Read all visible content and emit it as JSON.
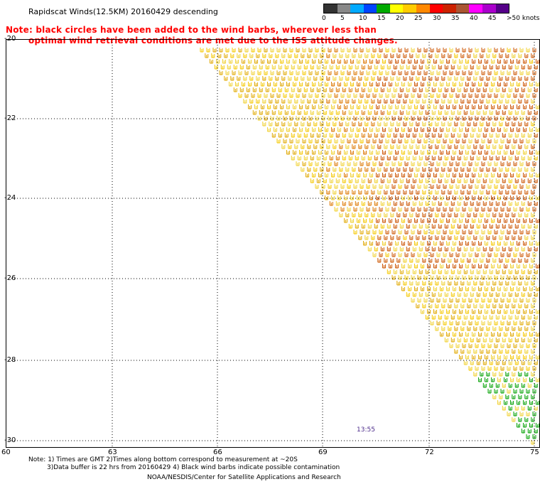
{
  "title": "Rapidscat Winds(12.5KM) 20160429 descending",
  "note": {
    "line1": "Note: black circles have been added to the wind barbs, wherever less than",
    "line2": "optimal wind retrieval conditions are met due to the ISS attitude changes."
  },
  "legend": {
    "labels": [
      "0",
      "5",
      "10",
      "15",
      "20",
      "25",
      "30",
      "35",
      "40",
      "45",
      ">50 knots"
    ],
    "colors": [
      "#333333",
      "#888888",
      "#00aaff",
      "#0044ff",
      "#00aa00",
      "#ffff00",
      "#ffcc00",
      "#ff8800",
      "#ff0000",
      "#cc2200",
      "#aa5533",
      "#ff00ff",
      "#aa00cc",
      "#550088"
    ]
  },
  "y_axis": [
    "-20",
    "-22",
    "-24",
    "-26",
    "-28",
    "-30"
  ],
  "x_axis": [
    "60",
    "63",
    "66",
    "69",
    "72",
    "75"
  ],
  "time_label": "13:55",
  "footer": {
    "line1": "Note: 1) Times are GMT 2)Times along bottom correspond to measurement at ~20S",
    "line2": "3)Data buffer is 22 hrs from 20160429 4) Black wind barbs indicate possible contamination",
    "line3": "NOAA/NESDIS/Center for Satellite Applications and Research"
  }
}
